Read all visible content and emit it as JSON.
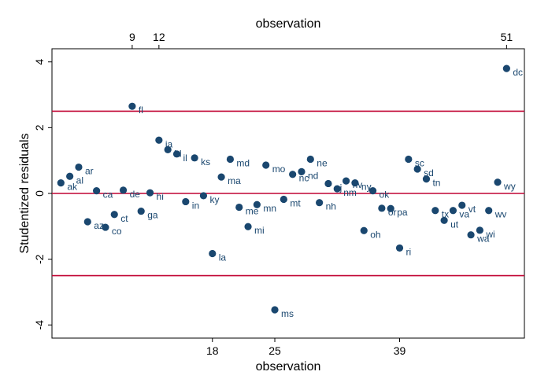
{
  "chart_data": {
    "type": "scatter",
    "xlabel": "observation",
    "x2label": "observation",
    "ylabel": "Studentized residuals",
    "xlim": [
      0,
      53
    ],
    "ylim": [
      -4.4,
      4.4
    ],
    "xticks": [
      18,
      25,
      39
    ],
    "x2ticks": [
      9,
      12,
      51
    ],
    "yticks": [
      -4,
      -2,
      0,
      2,
      4
    ],
    "reference_lines": [
      2.5,
      0,
      -2.5
    ],
    "colors": {
      "marker": "#1a476f",
      "label": "#1a476f",
      "refline": "#c10534"
    },
    "points": [
      {
        "x": 1,
        "y": 0.32,
        "label": "ak"
      },
      {
        "x": 2,
        "y": 0.52,
        "label": "al"
      },
      {
        "x": 3,
        "y": 0.8,
        "label": "ar"
      },
      {
        "x": 4,
        "y": -0.86,
        "label": "az"
      },
      {
        "x": 5,
        "y": 0.08,
        "label": "ca"
      },
      {
        "x": 6,
        "y": -1.03,
        "label": "co"
      },
      {
        "x": 7,
        "y": -0.64,
        "label": "ct"
      },
      {
        "x": 8,
        "y": 0.1,
        "label": "de"
      },
      {
        "x": 9,
        "y": 2.65,
        "label": "fl"
      },
      {
        "x": 10,
        "y": -0.54,
        "label": "ga"
      },
      {
        "x": 11,
        "y": 0.02,
        "label": "hi"
      },
      {
        "x": 12,
        "y": 1.62,
        "label": "ia"
      },
      {
        "x": 13,
        "y": 1.33,
        "label": "id"
      },
      {
        "x": 14,
        "y": 1.2,
        "label": "il"
      },
      {
        "x": 15,
        "y": -0.25,
        "label": "in"
      },
      {
        "x": 16,
        "y": 1.08,
        "label": "ks"
      },
      {
        "x": 17,
        "y": -0.07,
        "label": "ky"
      },
      {
        "x": 18,
        "y": -1.83,
        "label": "la"
      },
      {
        "x": 19,
        "y": 0.5,
        "label": "ma"
      },
      {
        "x": 20,
        "y": 1.04,
        "label": "md"
      },
      {
        "x": 21,
        "y": -0.42,
        "label": "me"
      },
      {
        "x": 22,
        "y": -1.01,
        "label": "mi"
      },
      {
        "x": 23,
        "y": -0.34,
        "label": "mn"
      },
      {
        "x": 24,
        "y": 0.86,
        "label": "mo"
      },
      {
        "x": 25,
        "y": -3.54,
        "label": "ms"
      },
      {
        "x": 26,
        "y": -0.18,
        "label": "mt"
      },
      {
        "x": 27,
        "y": 0.58,
        "label": "nc"
      },
      {
        "x": 28,
        "y": 0.66,
        "label": "nd"
      },
      {
        "x": 29,
        "y": 1.04,
        "label": "ne"
      },
      {
        "x": 30,
        "y": -0.28,
        "label": "nh"
      },
      {
        "x": 31,
        "y": 0.3,
        "label": "nj"
      },
      {
        "x": 32,
        "y": 0.14,
        "label": "nm"
      },
      {
        "x": 33,
        "y": 0.38,
        "label": "nv"
      },
      {
        "x": 34,
        "y": 0.32,
        "label": "ny"
      },
      {
        "x": 35,
        "y": -1.13,
        "label": "oh"
      },
      {
        "x": 36,
        "y": 0.08,
        "label": "ok"
      },
      {
        "x": 37,
        "y": -0.45,
        "label": "or"
      },
      {
        "x": 38,
        "y": -0.46,
        "label": "pa"
      },
      {
        "x": 39,
        "y": -1.66,
        "label": "ri"
      },
      {
        "x": 40,
        "y": 1.04,
        "label": "sc"
      },
      {
        "x": 41,
        "y": 0.74,
        "label": "sd"
      },
      {
        "x": 42,
        "y": 0.44,
        "label": "tn"
      },
      {
        "x": 43,
        "y": -0.52,
        "label": "tx"
      },
      {
        "x": 44,
        "y": -0.82,
        "label": "ut"
      },
      {
        "x": 45,
        "y": -0.52,
        "label": "va"
      },
      {
        "x": 46,
        "y": -0.36,
        "label": "vt"
      },
      {
        "x": 47,
        "y": -1.26,
        "label": "wa"
      },
      {
        "x": 48,
        "y": -1.12,
        "label": "wi"
      },
      {
        "x": 49,
        "y": -0.52,
        "label": "wv"
      },
      {
        "x": 50,
        "y": 0.34,
        "label": "wy"
      },
      {
        "x": 51,
        "y": 3.8,
        "label": "dc"
      }
    ]
  }
}
